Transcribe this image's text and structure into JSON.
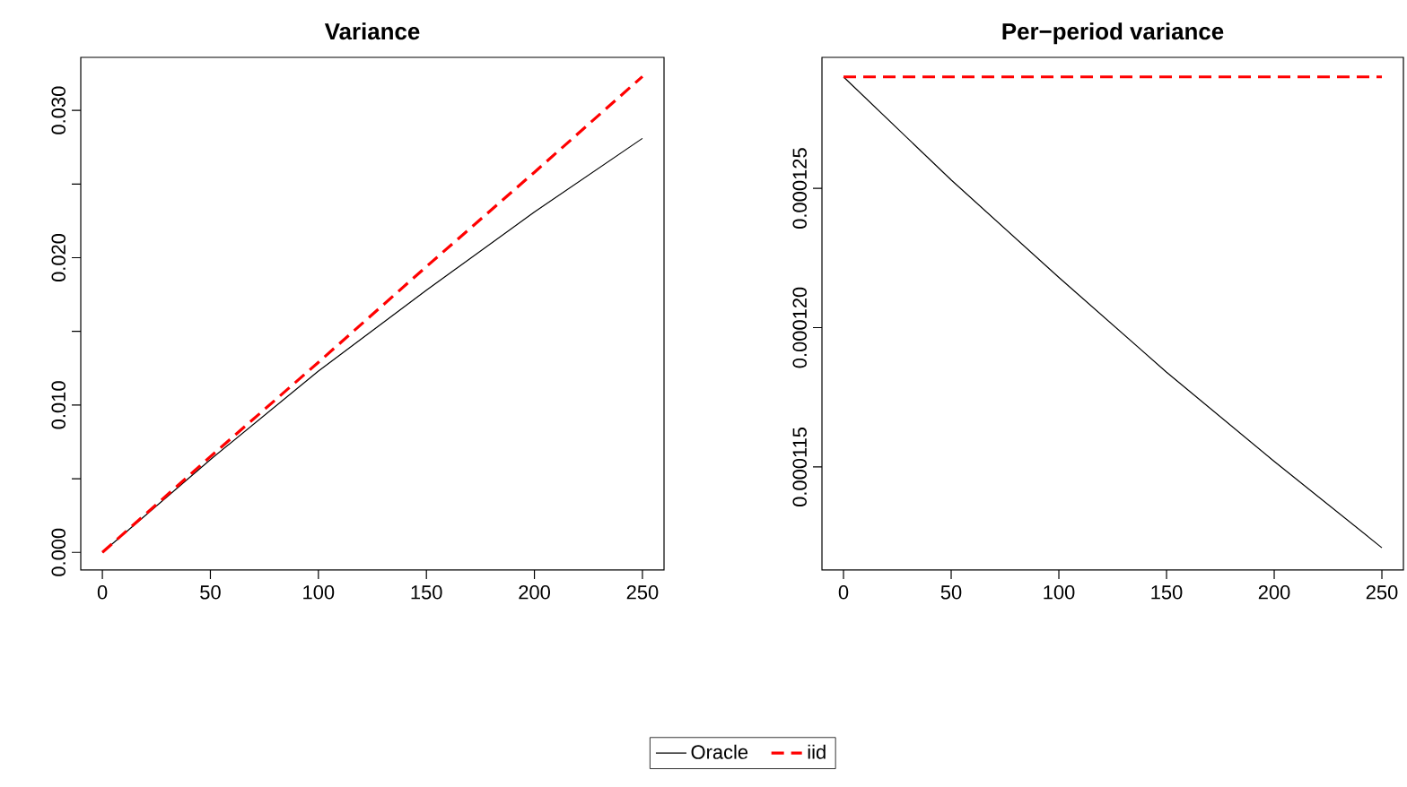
{
  "chart_data": [
    {
      "type": "line",
      "title": "Variance",
      "x": [
        0,
        50,
        100,
        150,
        200,
        250
      ],
      "xlim": [
        -10,
        260
      ],
      "ylim": [
        -0.0012,
        0.0336
      ],
      "xticks": [
        0,
        50,
        100,
        150,
        200,
        250
      ],
      "yticks": [
        {
          "value": 0,
          "label": "0.000"
        },
        {
          "value": 0.005,
          "label": null
        },
        {
          "value": 0.01,
          "label": "0.010"
        },
        {
          "value": 0.015,
          "label": null
        },
        {
          "value": 0.02,
          "label": "0.020"
        },
        {
          "value": 0.025,
          "label": null
        },
        {
          "value": 0.03,
          "label": "0.030"
        }
      ],
      "legend": "bottom",
      "grid": false,
      "series": [
        {
          "name": "Oracle",
          "color": "#000000",
          "line_style": "solid",
          "values": [
            0,
            0.0063,
            0.0123,
            0.0178,
            0.0231,
            0.0281
          ]
        },
        {
          "name": "iid",
          "color": "#ff0000",
          "line_style": "dashed",
          "values": [
            0,
            0.0065,
            0.0129,
            0.0194,
            0.0258,
            0.0323
          ]
        }
      ]
    },
    {
      "type": "line",
      "title": "Per−period variance",
      "x": [
        0,
        50,
        100,
        150,
        200,
        250
      ],
      "xlim": [
        -10,
        260
      ],
      "ylim": [
        0.0001113,
        0.0001297
      ],
      "xticks": [
        0,
        50,
        100,
        150,
        200,
        250
      ],
      "yticks": [
        {
          "value": 0.000115,
          "label": "0.000115"
        },
        {
          "value": 0.00012,
          "label": "0.000120"
        },
        {
          "value": 0.000125,
          "label": "0.000125"
        }
      ],
      "legend": false,
      "grid": false,
      "series": [
        {
          "color": "#000000",
          "line_style": "solid",
          "values": [
            0.000129,
            0.0001253,
            0.0001218,
            0.0001184,
            0.0001152,
            0.0001121
          ]
        },
        {
          "color": "#ff0000",
          "line_style": "dashed",
          "values": [
            0.000129,
            0.000129,
            0.000129,
            0.000129,
            0.000129,
            0.000129
          ]
        }
      ]
    }
  ]
}
